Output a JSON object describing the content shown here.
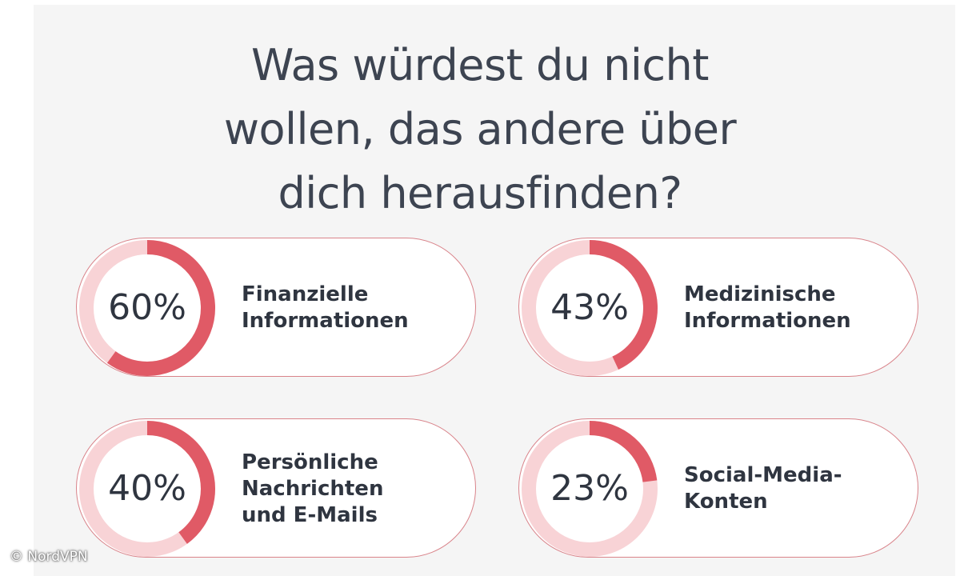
{
  "title_lines": [
    "Was würdest du nicht",
    "wollen, das andere über",
    "dich herausfinden?"
  ],
  "credit": "© NordVPN",
  "colors": {
    "accent": "#e05a66",
    "track": "#f8d3d6",
    "border": "#d9838a",
    "text": "#2f3540"
  },
  "chart_data": {
    "type": "pie",
    "title": "Was würdest du nicht wollen, das andere über dich herausfinden?",
    "unit": "%",
    "items": [
      {
        "percent_label": "60%",
        "value": 60,
        "label_lines": [
          "Finanzielle",
          "Informationen"
        ]
      },
      {
        "percent_label": "43%",
        "value": 43,
        "label_lines": [
          "Medizinische",
          "Informationen"
        ]
      },
      {
        "percent_label": "40%",
        "value": 40,
        "label_lines": [
          "Persönliche",
          "Nachrichten",
          "und E-Mails"
        ]
      },
      {
        "percent_label": "23%",
        "value": 23,
        "label_lines": [
          "Social-Media-",
          "Konten"
        ]
      }
    ]
  }
}
